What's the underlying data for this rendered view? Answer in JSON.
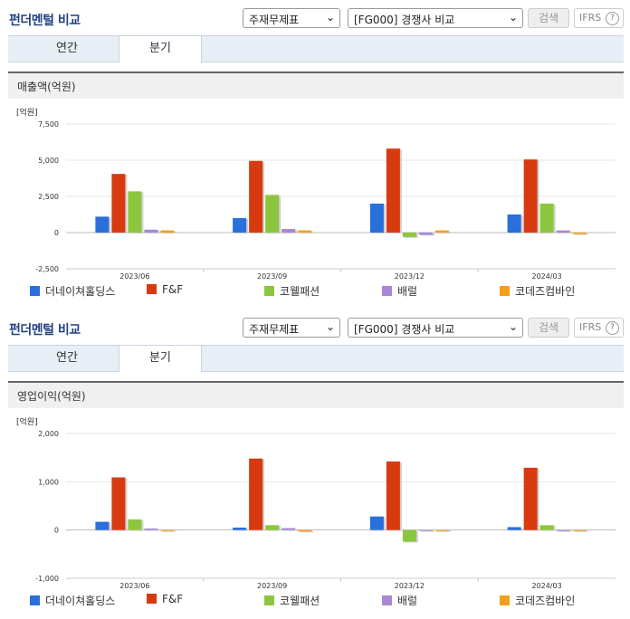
{
  "header": {
    "title": "펀더멘털 비교",
    "select_theme": "주재무제표",
    "select_compare": "[FG000] 경쟁사 비교",
    "search_label": "검색",
    "ifrs_label": "IFRS",
    "help_label": "?"
  },
  "tabs": [
    "연간",
    "분기"
  ],
  "active_tab": "분기",
  "legend": [
    {
      "name": "더네이쳐홀딩스",
      "color": "#2a6fdb"
    },
    {
      "name": "F&F",
      "color": "#d83a0f"
    },
    {
      "name": "코웰패션",
      "color": "#8cc63e"
    },
    {
      "name": "배럴",
      "color": "#a887d6"
    },
    {
      "name": "코데즈컴바인",
      "color": "#f59e1c"
    }
  ],
  "chart_data": [
    {
      "type": "bar",
      "title": "매출액(억원)",
      "unit": "[억원]",
      "categories": [
        "2023/06",
        "2023/09",
        "2023/12",
        "2024/03"
      ],
      "ylim": [
        -2500,
        7500
      ],
      "yticks": [
        -2500,
        0,
        2500,
        5000,
        7500
      ],
      "ytick_labels": [
        "-2,500",
        "0",
        "2,500",
        "5,000",
        "7,500"
      ],
      "series": [
        {
          "name": "더네이쳐홀딩스",
          "values": [
            1100,
            1000,
            2000,
            1250
          ]
        },
        {
          "name": "F&F",
          "values": [
            4050,
            4950,
            5800,
            5050
          ]
        },
        {
          "name": "코웰패션",
          "values": [
            2850,
            2600,
            -300,
            2000
          ]
        },
        {
          "name": "배럴",
          "values": [
            200,
            250,
            -150,
            150
          ]
        },
        {
          "name": "코데즈컴바인",
          "values": [
            150,
            150,
            150,
            -100
          ]
        }
      ]
    },
    {
      "type": "bar",
      "title": "영업이익(억원)",
      "unit": "[억원]",
      "categories": [
        "2023/06",
        "2023/09",
        "2023/12",
        "2024/03"
      ],
      "ylim": [
        -1000,
        2000
      ],
      "yticks": [
        -1000,
        0,
        1000,
        2000
      ],
      "ytick_labels": [
        "-1,000",
        "0",
        "1,000",
        "2,000"
      ],
      "series": [
        {
          "name": "더네이쳐홀딩스",
          "values": [
            170,
            50,
            280,
            60
          ]
        },
        {
          "name": "F&F",
          "values": [
            1090,
            1480,
            1420,
            1290
          ]
        },
        {
          "name": "코웰패션",
          "values": [
            220,
            100,
            -240,
            100
          ]
        },
        {
          "name": "배럴",
          "values": [
            30,
            40,
            -10,
            -20
          ]
        },
        {
          "name": "코데즈컴바인",
          "values": [
            -20,
            -30,
            -20,
            -20
          ]
        }
      ]
    }
  ]
}
